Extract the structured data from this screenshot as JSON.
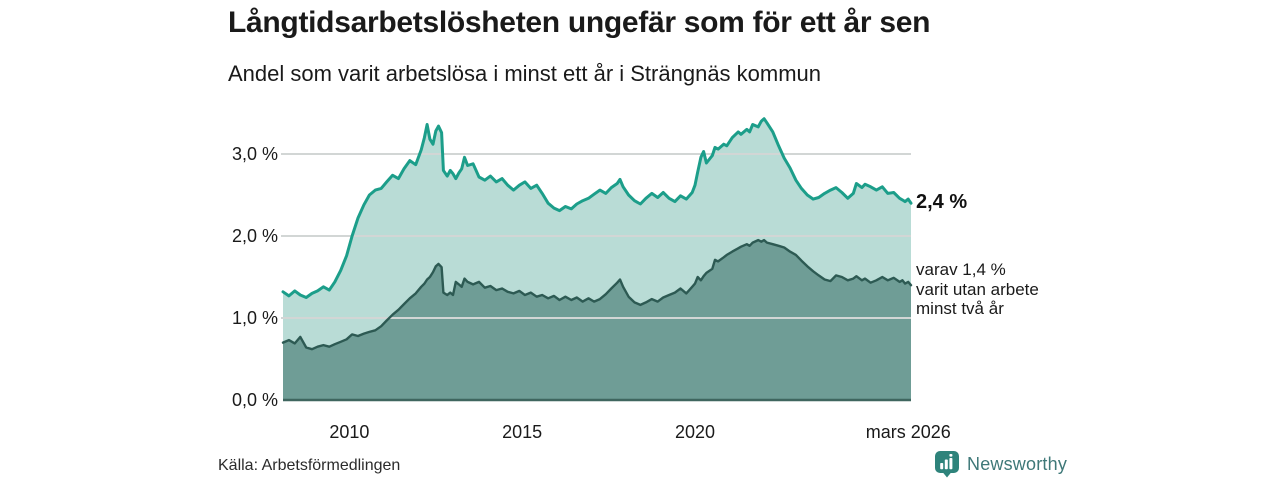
{
  "header": {
    "title": "Långtidsarbetslösheten ungefär som för ett år sen",
    "subtitle": "Andel som varit arbetslösa i minst ett år i Strängnäs kommun"
  },
  "annotations": {
    "latest_total": "2,4 %",
    "secondary_lines": [
      "varav 1,4 %",
      "varit utan arbete",
      "minst två år"
    ]
  },
  "footer": {
    "source": "Källa: Arbetsförmedlingen",
    "brand": "Newsworthy",
    "brand_color": "#2e837b",
    "brand_text_color": "#3e7878"
  },
  "chart_data": {
    "type": "area",
    "title": "Långtidsarbetslösheten ungefär som för ett år sen",
    "subtitle": "Andel som varit arbetslösa i minst ett år i Strängnäs kommun",
    "xlabel": "",
    "ylabel": "",
    "x_unit": "decimal_year",
    "xlim": [
      2008.08,
      2026.25
    ],
    "ylim": [
      0,
      3.5
    ],
    "grid": "horizontal",
    "grid_color": "#d2d6d5",
    "baseline_color": "#3f665f",
    "legend": "none",
    "yticks": [
      {
        "value": 3,
        "label": "3,0 %"
      },
      {
        "value": 2,
        "label": "2,0 %"
      },
      {
        "value": 1,
        "label": "1,0 %"
      },
      {
        "value": 0,
        "label": "0,0 %"
      }
    ],
    "xticks": [
      {
        "value": 2010,
        "label": "2010"
      },
      {
        "value": 2015,
        "label": "2015"
      },
      {
        "value": 2020,
        "label": "2020"
      },
      {
        "value": 2026.17,
        "label": "mars 2026"
      }
    ],
    "x": [
      2008.08,
      2008.25,
      2008.42,
      2008.58,
      2008.75,
      2008.92,
      2009.08,
      2009.25,
      2009.42,
      2009.58,
      2009.75,
      2009.92,
      2010.08,
      2010.25,
      2010.42,
      2010.58,
      2010.75,
      2010.92,
      2011.08,
      2011.25,
      2011.42,
      2011.58,
      2011.75,
      2011.92,
      2012.08,
      2012.17,
      2012.25,
      2012.33,
      2012.42,
      2012.5,
      2012.58,
      2012.67,
      2012.72,
      2012.83,
      2012.92,
      2013.0,
      2013.08,
      2013.17,
      2013.25,
      2013.33,
      2013.42,
      2013.58,
      2013.75,
      2013.92,
      2014.08,
      2014.25,
      2014.42,
      2014.58,
      2014.75,
      2014.92,
      2015.08,
      2015.25,
      2015.42,
      2015.58,
      2015.75,
      2015.92,
      2016.08,
      2016.25,
      2016.42,
      2016.58,
      2016.75,
      2016.92,
      2017.08,
      2017.25,
      2017.42,
      2017.58,
      2017.75,
      2017.83,
      2017.92,
      2018.08,
      2018.25,
      2018.42,
      2018.58,
      2018.75,
      2018.92,
      2019.08,
      2019.25,
      2019.42,
      2019.58,
      2019.75,
      2019.92,
      2020.0,
      2020.08,
      2020.17,
      2020.25,
      2020.33,
      2020.5,
      2020.58,
      2020.67,
      2020.83,
      2020.92,
      2021.08,
      2021.25,
      2021.33,
      2021.5,
      2021.58,
      2021.67,
      2021.83,
      2021.92,
      2022.0,
      2022.08,
      2022.25,
      2022.42,
      2022.58,
      2022.75,
      2022.92,
      2023.08,
      2023.25,
      2023.42,
      2023.58,
      2023.75,
      2023.92,
      2024.08,
      2024.25,
      2024.42,
      2024.58,
      2024.67,
      2024.83,
      2024.92,
      2025.08,
      2025.25,
      2025.42,
      2025.58,
      2025.75,
      2025.92,
      2026.0,
      2026.08,
      2026.17,
      2026.25
    ],
    "series": [
      {
        "name": "Arbetslösa minst ett år",
        "color": "#1c9e8a",
        "fill": "#b9dcd6",
        "values": [
          1.32,
          1.27,
          1.33,
          1.28,
          1.25,
          1.3,
          1.33,
          1.38,
          1.34,
          1.44,
          1.58,
          1.76,
          2.0,
          2.22,
          2.38,
          2.5,
          2.56,
          2.58,
          2.66,
          2.74,
          2.7,
          2.82,
          2.92,
          2.87,
          3.05,
          3.2,
          3.36,
          3.18,
          3.12,
          3.28,
          3.34,
          3.26,
          2.8,
          2.73,
          2.8,
          2.76,
          2.7,
          2.77,
          2.82,
          2.96,
          2.86,
          2.88,
          2.72,
          2.68,
          2.73,
          2.66,
          2.7,
          2.62,
          2.56,
          2.62,
          2.66,
          2.58,
          2.62,
          2.52,
          2.4,
          2.34,
          2.31,
          2.36,
          2.33,
          2.39,
          2.43,
          2.46,
          2.51,
          2.56,
          2.52,
          2.59,
          2.64,
          2.69,
          2.6,
          2.5,
          2.43,
          2.39,
          2.46,
          2.52,
          2.47,
          2.53,
          2.46,
          2.42,
          2.49,
          2.45,
          2.53,
          2.62,
          2.78,
          2.96,
          3.03,
          2.89,
          2.98,
          3.08,
          3.06,
          3.12,
          3.1,
          3.2,
          3.27,
          3.24,
          3.3,
          3.27,
          3.36,
          3.33,
          3.4,
          3.43,
          3.38,
          3.27,
          3.1,
          2.95,
          2.83,
          2.68,
          2.58,
          2.5,
          2.45,
          2.47,
          2.52,
          2.56,
          2.59,
          2.53,
          2.46,
          2.52,
          2.64,
          2.59,
          2.63,
          2.6,
          2.56,
          2.6,
          2.52,
          2.53,
          2.46,
          2.44,
          2.42,
          2.45,
          2.4
        ]
      },
      {
        "name": "Varav utan arbete minst två år",
        "color": "#2d5a53",
        "fill": "#6f9d96",
        "values": [
          0.7,
          0.73,
          0.69,
          0.77,
          0.64,
          0.62,
          0.65,
          0.67,
          0.65,
          0.68,
          0.71,
          0.74,
          0.8,
          0.78,
          0.81,
          0.83,
          0.85,
          0.9,
          0.97,
          1.04,
          1.1,
          1.17,
          1.24,
          1.3,
          1.38,
          1.42,
          1.47,
          1.5,
          1.56,
          1.63,
          1.66,
          1.62,
          1.31,
          1.28,
          1.31,
          1.28,
          1.44,
          1.41,
          1.38,
          1.48,
          1.44,
          1.41,
          1.44,
          1.37,
          1.39,
          1.34,
          1.36,
          1.32,
          1.3,
          1.33,
          1.28,
          1.31,
          1.26,
          1.28,
          1.24,
          1.27,
          1.22,
          1.26,
          1.22,
          1.25,
          1.2,
          1.24,
          1.2,
          1.23,
          1.29,
          1.36,
          1.43,
          1.47,
          1.38,
          1.26,
          1.19,
          1.16,
          1.19,
          1.23,
          1.2,
          1.25,
          1.28,
          1.31,
          1.36,
          1.3,
          1.38,
          1.42,
          1.5,
          1.46,
          1.51,
          1.55,
          1.6,
          1.71,
          1.69,
          1.74,
          1.77,
          1.81,
          1.85,
          1.87,
          1.9,
          1.88,
          1.92,
          1.95,
          1.93,
          1.95,
          1.92,
          1.9,
          1.88,
          1.86,
          1.81,
          1.77,
          1.7,
          1.63,
          1.57,
          1.52,
          1.47,
          1.45,
          1.52,
          1.5,
          1.46,
          1.48,
          1.51,
          1.46,
          1.48,
          1.43,
          1.46,
          1.5,
          1.46,
          1.49,
          1.44,
          1.46,
          1.42,
          1.44,
          1.4
        ]
      }
    ],
    "end_labels": {
      "total": "2,4 %",
      "two_year": "varav 1,4 % varit utan arbete minst två år"
    }
  }
}
